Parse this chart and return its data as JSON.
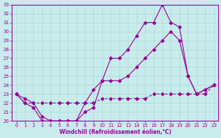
{
  "xlabel": "Windchill (Refroidissement éolien,°C)",
  "xlim": [
    -0.5,
    23.5
  ],
  "ylim": [
    20,
    33
  ],
  "xticks": [
    0,
    1,
    2,
    3,
    4,
    5,
    6,
    7,
    8,
    9,
    10,
    11,
    12,
    13,
    14,
    15,
    16,
    17,
    18,
    19,
    20,
    21,
    22,
    23
  ],
  "yticks": [
    20,
    21,
    22,
    23,
    24,
    25,
    26,
    27,
    28,
    29,
    30,
    31,
    32,
    33
  ],
  "bg_color": "#c8ecec",
  "grid_color": "#b0d8d8",
  "line_color": "#990099",
  "line1_x": [
    0,
    1,
    2,
    3,
    4,
    5,
    6,
    7,
    8,
    9,
    10,
    11,
    12,
    13,
    14,
    15,
    16,
    17,
    18,
    19,
    20,
    21,
    22,
    23
  ],
  "line1_y": [
    23,
    22,
    21.5,
    20,
    20,
    20,
    20,
    20,
    21,
    21.5,
    24.5,
    27,
    27,
    28,
    29.5,
    31,
    31,
    33,
    31,
    30.5,
    25,
    23,
    23.5,
    24
  ],
  "line2_x": [
    0,
    1,
    2,
    3,
    4,
    5,
    6,
    7,
    8,
    9,
    10,
    11,
    12,
    13,
    14,
    15,
    16,
    17,
    18,
    19,
    20,
    21,
    22,
    23
  ],
  "line2_y": [
    23,
    22.5,
    22,
    20.5,
    20,
    20,
    20,
    20,
    22,
    23.5,
    24.5,
    24.5,
    24.5,
    25,
    26,
    27,
    28,
    29,
    30,
    29,
    25,
    23,
    23.5,
    24
  ],
  "line3_x": [
    0,
    1,
    2,
    3,
    4,
    5,
    6,
    7,
    8,
    9,
    10,
    11,
    12,
    13,
    14,
    15,
    16,
    17,
    18,
    19,
    20,
    21,
    22,
    23
  ],
  "line3_y": [
    23,
    22,
    22,
    22,
    22,
    22,
    22,
    22,
    22,
    22,
    22.5,
    22.5,
    22.5,
    22.5,
    22.5,
    22.5,
    23,
    23,
    23,
    23,
    23,
    23,
    23,
    24
  ]
}
